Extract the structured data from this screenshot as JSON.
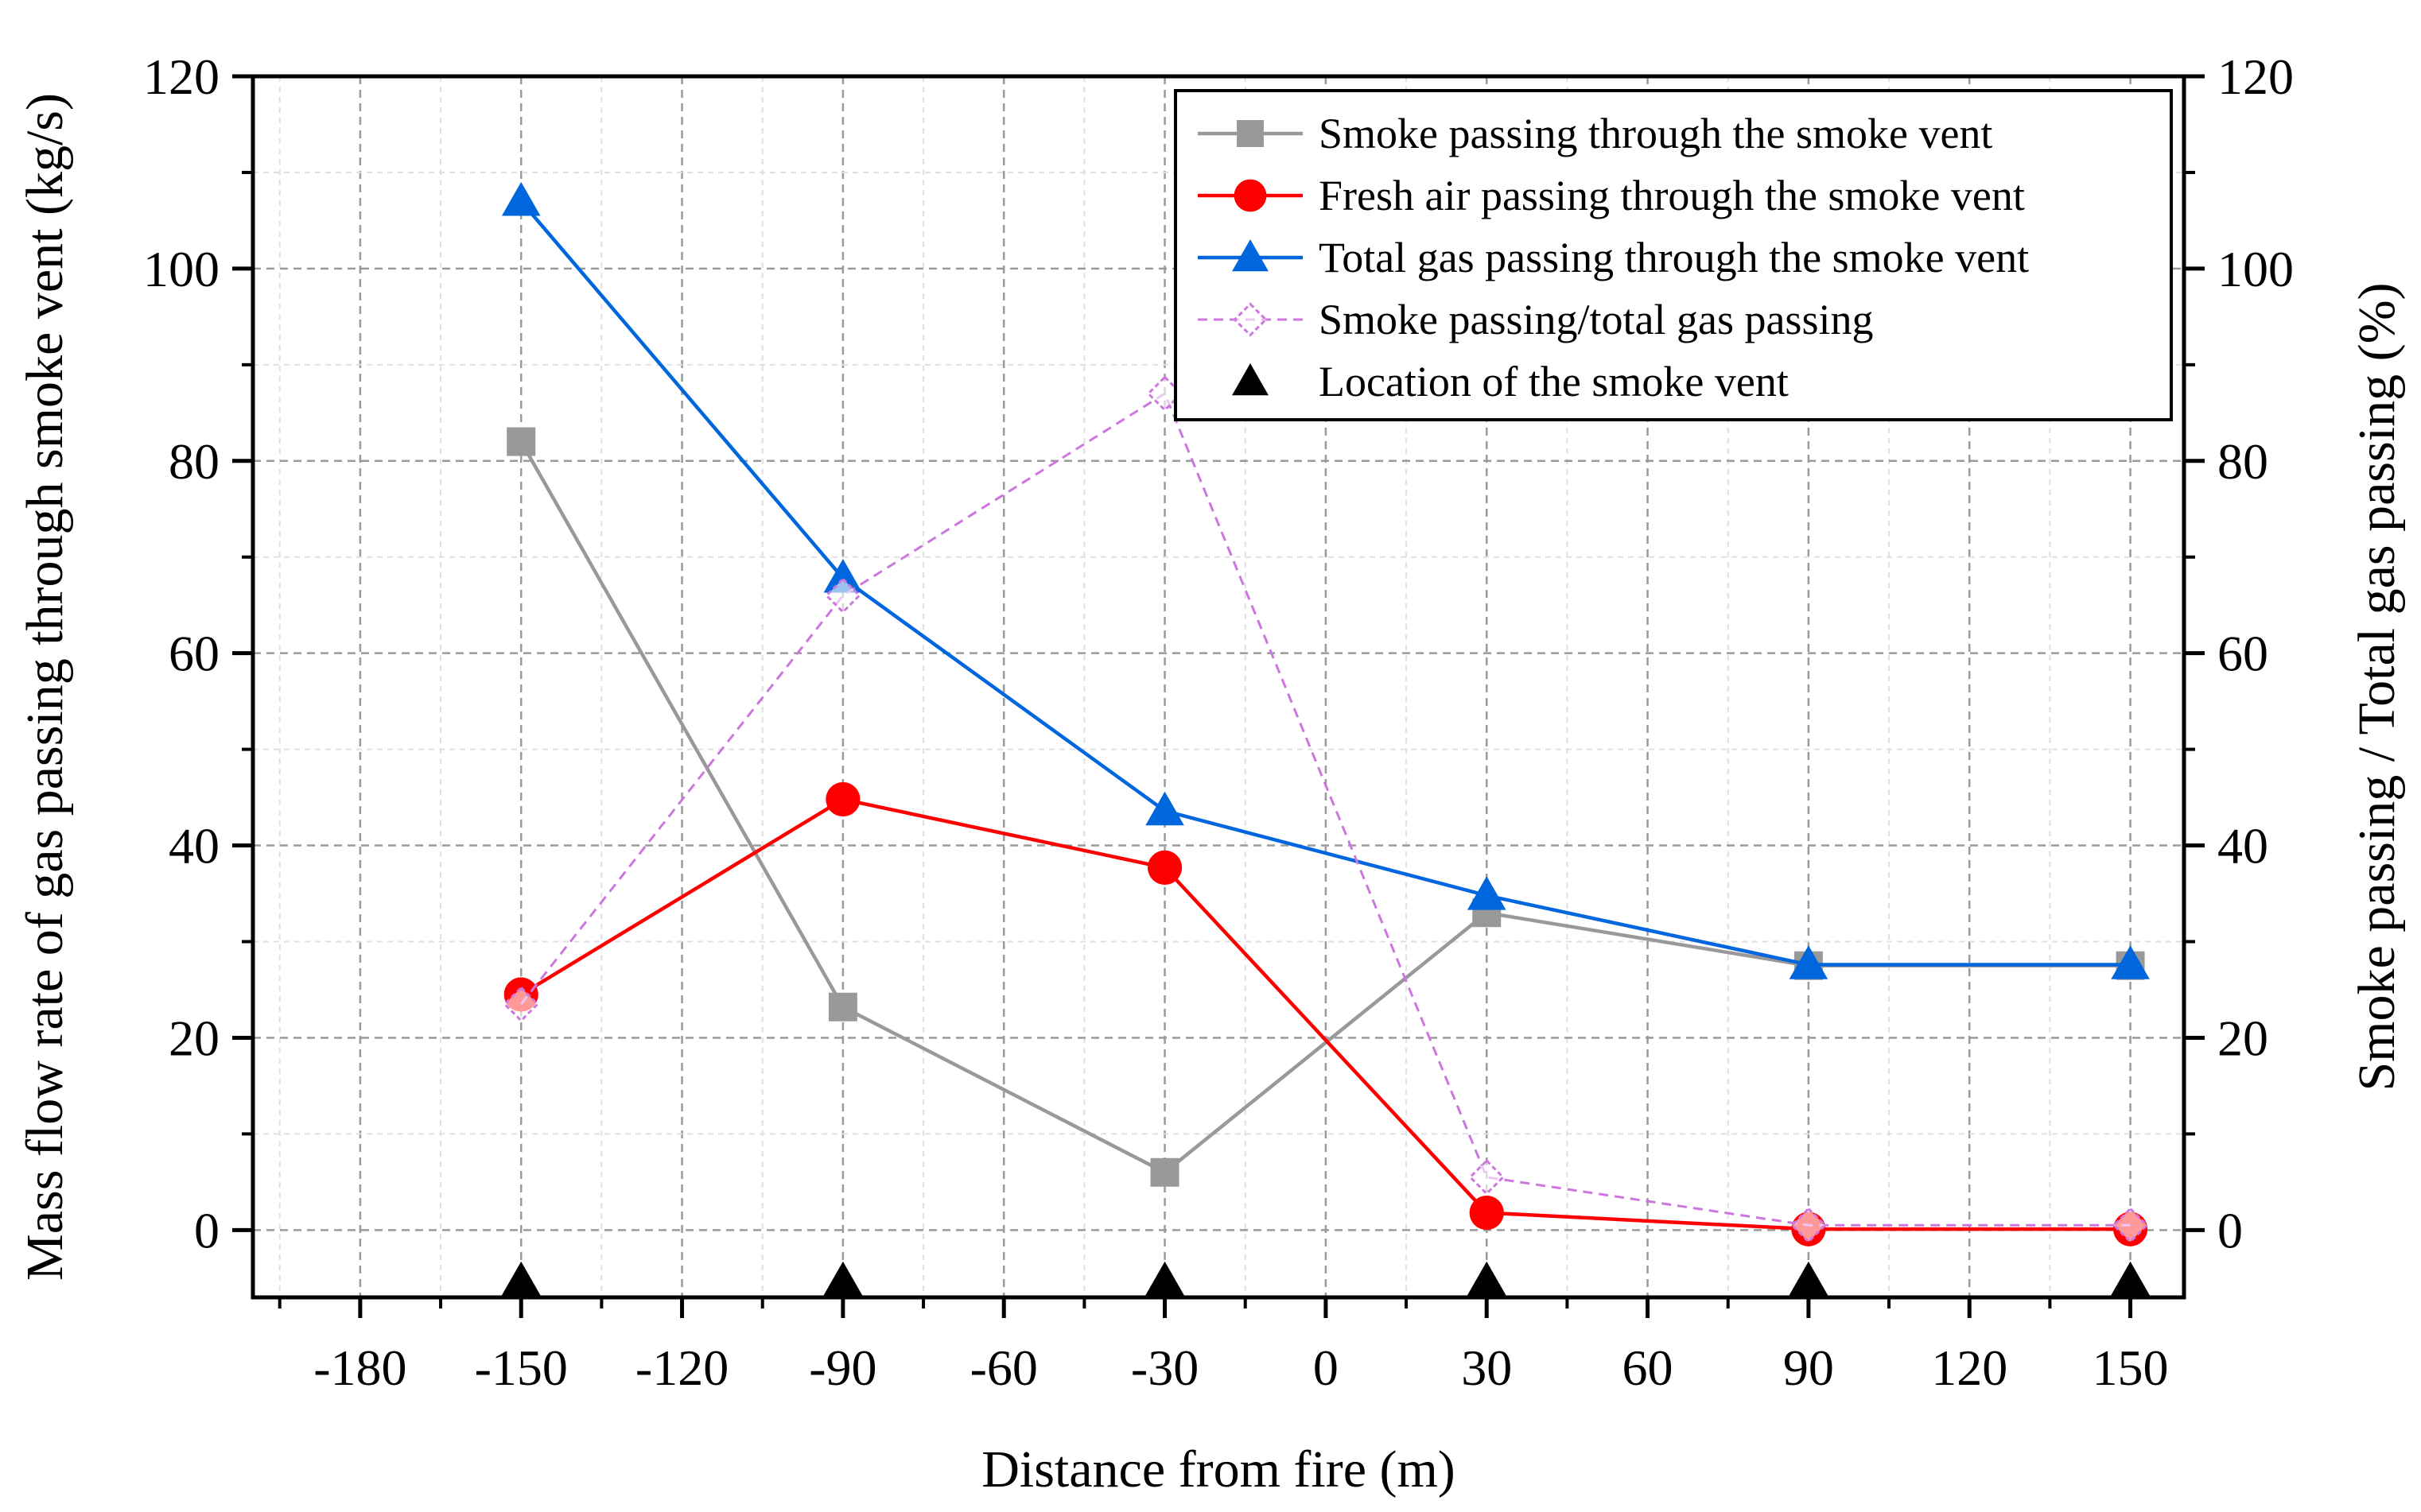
{
  "chart_data": {
    "type": "line",
    "xlabel": "Distance from fire (m)",
    "ylabel_left": "Mass flow rate of  gas passing through smoke vent (kg/s)",
    "ylabel_right": "Smoke passing / Total gas passing (%)",
    "xlim": [
      -200,
      160
    ],
    "ylim_left": [
      -7,
      120
    ],
    "ylim_right": [
      -7,
      120
    ],
    "x_ticks": [
      -180,
      -150,
      -120,
      -90,
      -60,
      -30,
      0,
      30,
      60,
      90,
      120,
      150
    ],
    "x_tick_labels": [
      "-180",
      "-150",
      "-120",
      "-90",
      "-60",
      "-30",
      "0",
      "30",
      "60",
      "90",
      "120",
      "150"
    ],
    "y_ticks": [
      0,
      20,
      40,
      60,
      80,
      100,
      120
    ],
    "y_tick_labels": [
      "0",
      "20",
      "40",
      "60",
      "80",
      "100",
      "120"
    ],
    "grid": true,
    "legend_position": "top-right",
    "series": [
      {
        "name": "Smoke passing through the smoke vent",
        "axis": "left",
        "marker": "square",
        "line": "solid",
        "color": "#999999",
        "x": [
          -150,
          -90,
          -30,
          30,
          90,
          150
        ],
        "values": [
          82,
          23.2,
          6,
          33,
          27.5,
          27.5
        ]
      },
      {
        "name": "Fresh air passing through the smoke vent",
        "axis": "left",
        "marker": "circle",
        "line": "solid",
        "color": "#ff0000",
        "x": [
          -150,
          -90,
          -30,
          30,
          90,
          150
        ],
        "values": [
          24.5,
          44.8,
          37.7,
          1.8,
          0.1,
          0.1
        ]
      },
      {
        "name": "Total gas passing through the smoke vent",
        "axis": "left",
        "marker": "triangle",
        "line": "solid",
        "color": "#0066dd",
        "x": [
          -150,
          -90,
          -30,
          30,
          90,
          150
        ],
        "values": [
          107,
          67.8,
          43.6,
          34.8,
          27.6,
          27.6
        ]
      },
      {
        "name": "Smoke passing/total gas passing",
        "axis": "right",
        "marker": "open-diamond",
        "line": "dashed",
        "color": "#cc77dd",
        "x": [
          -150,
          -90,
          -30,
          30,
          90,
          150
        ],
        "values": [
          23.5,
          66,
          87,
          5.5,
          0.5,
          0.5
        ]
      },
      {
        "name": "Location of the smoke vent",
        "axis": "left",
        "marker": "triangle",
        "line": "none",
        "color": "#000000",
        "x": [
          -150,
          -90,
          -30,
          30,
          90,
          150
        ],
        "values": [
          -5.5,
          -5.5,
          -5.5,
          -5.5,
          -5.5,
          -5.5
        ]
      }
    ]
  }
}
